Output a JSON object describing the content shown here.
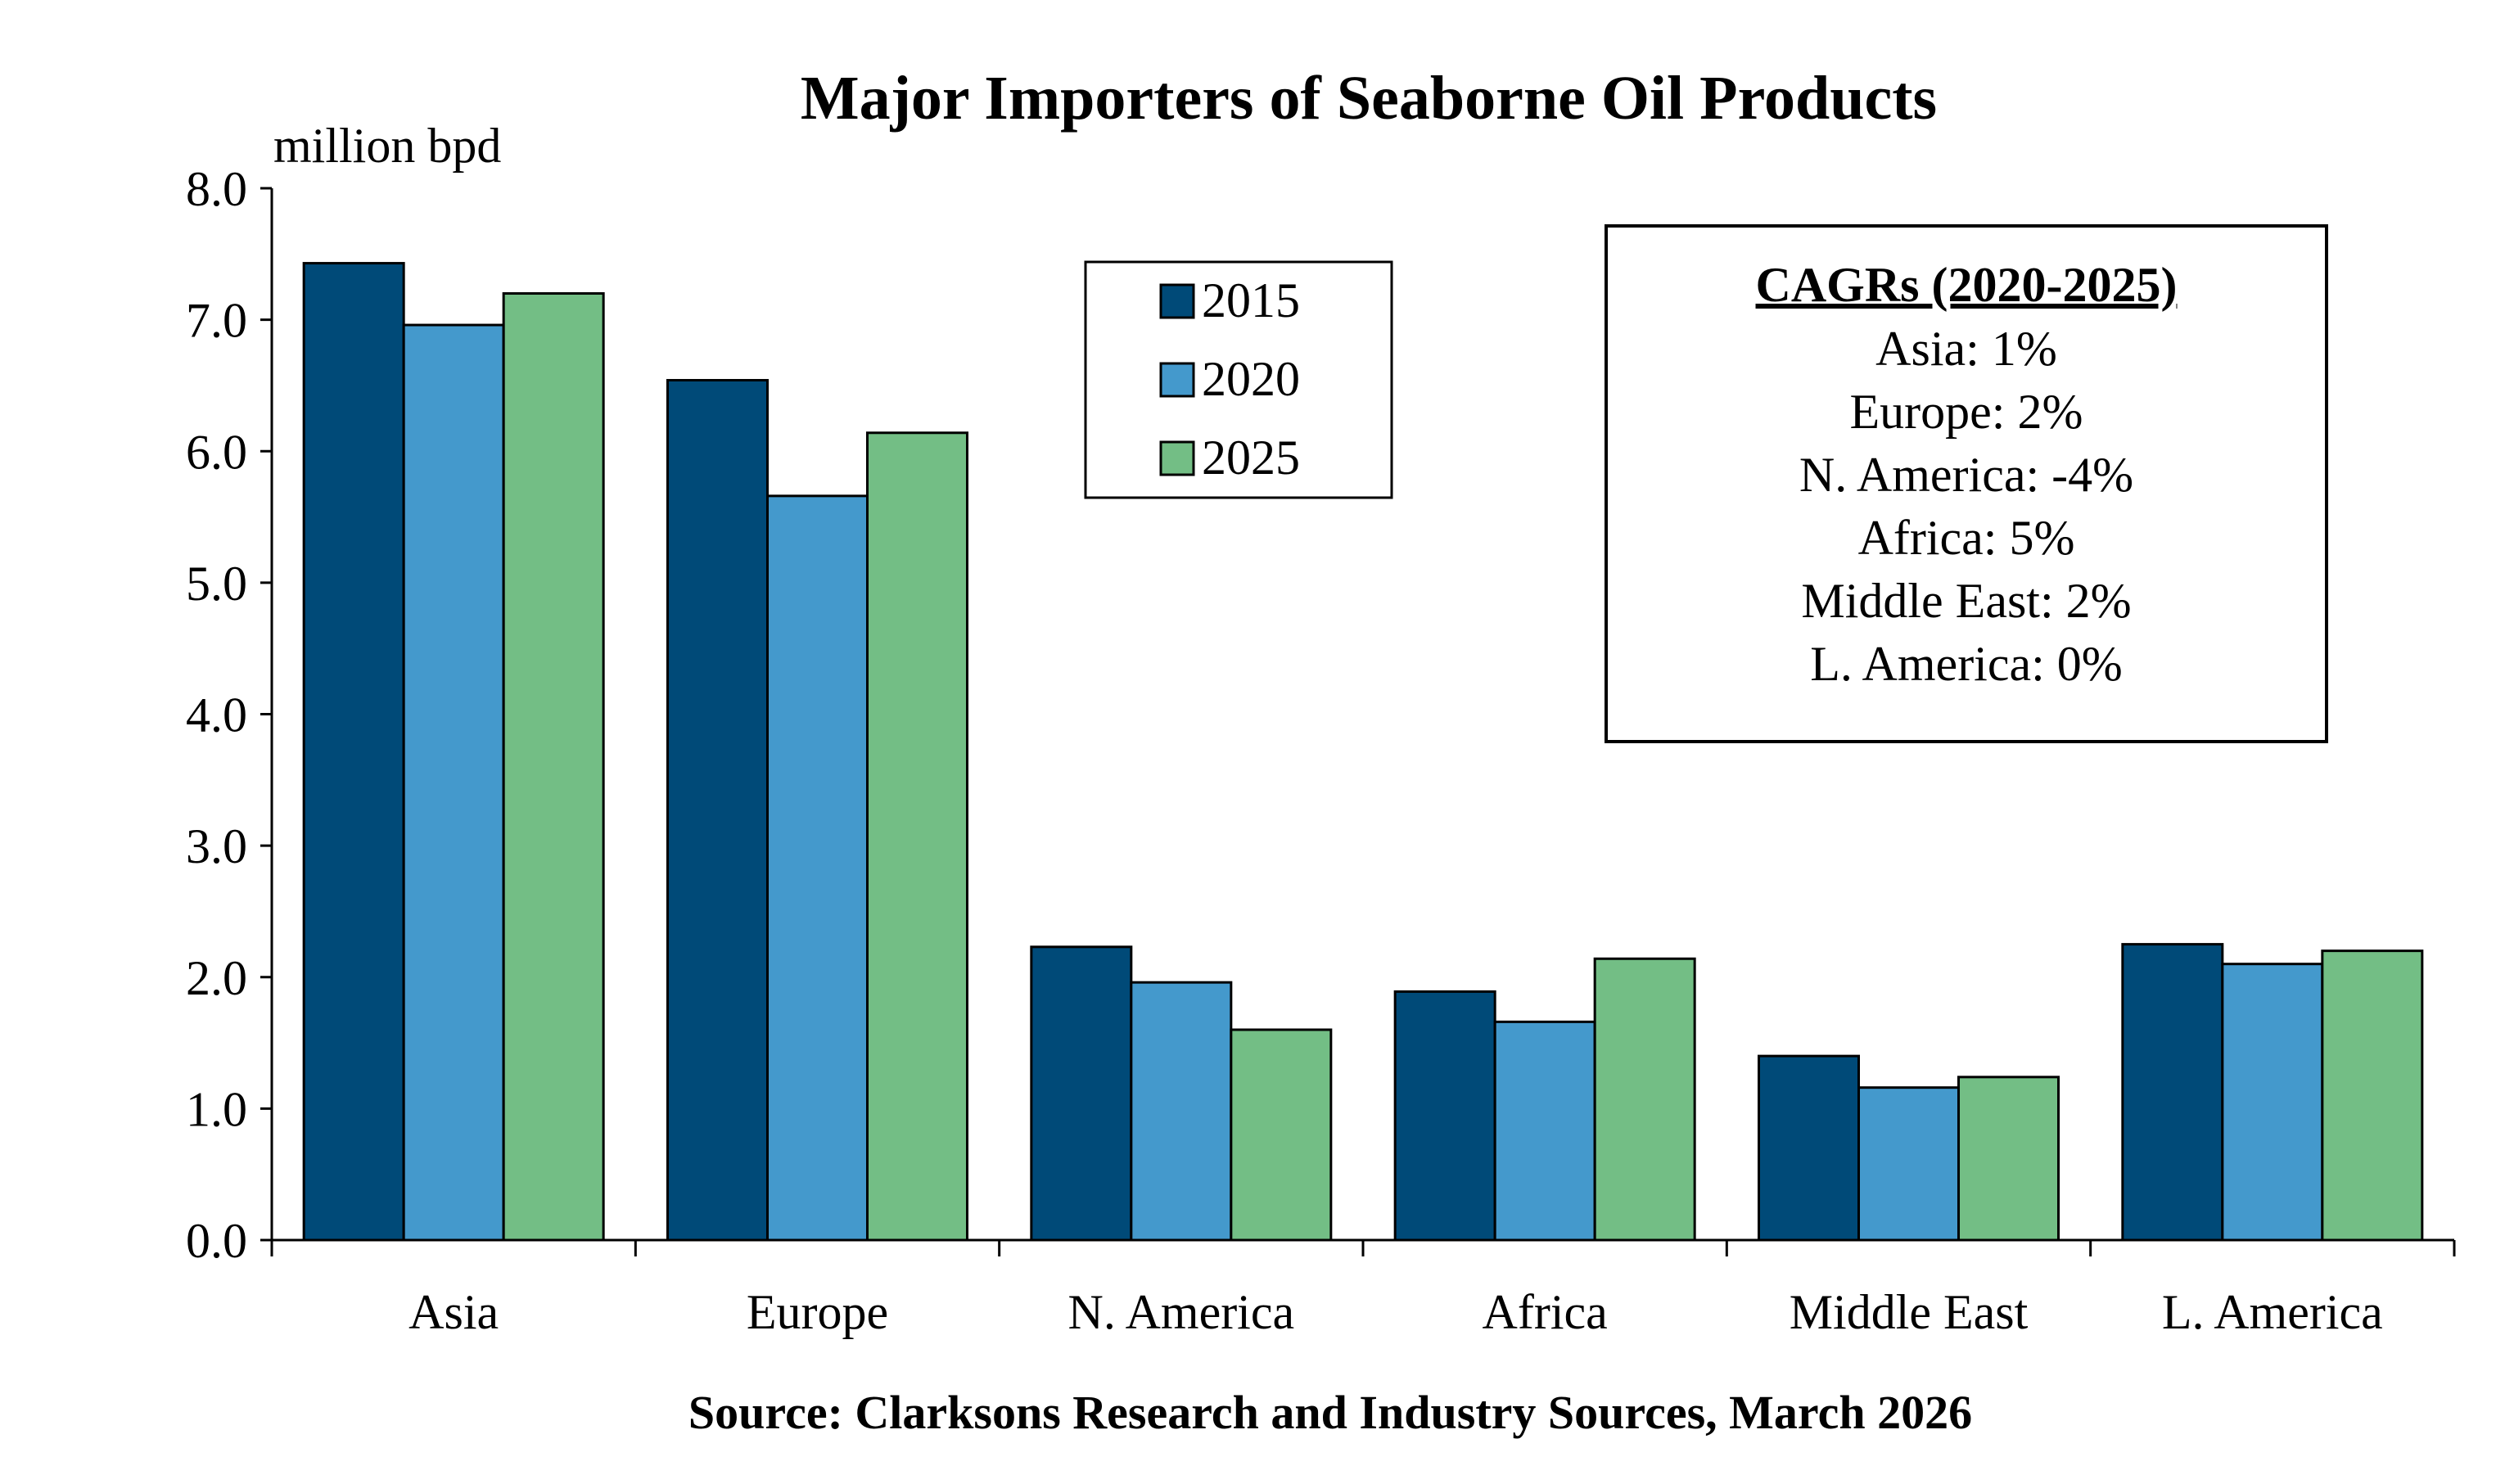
{
  "chart_data": {
    "type": "bar",
    "title": "Major Importers of Seaborne Oil Products",
    "ylabel": "million bpd",
    "xlabel": "",
    "ylim": [
      0,
      8
    ],
    "yticks": [
      "0.0",
      "1.0",
      "2.0",
      "3.0",
      "4.0",
      "5.0",
      "6.0",
      "7.0",
      "8.0"
    ],
    "categories": [
      "Asia",
      "Europe",
      "N. America",
      "Africa",
      "Middle East",
      "L. America"
    ],
    "series": [
      {
        "name": "2015",
        "color": "#004A78",
        "values": [
          7.43,
          6.54,
          2.23,
          1.89,
          1.4,
          2.25
        ]
      },
      {
        "name": "2020",
        "color": "#4499CC",
        "values": [
          6.96,
          5.66,
          1.96,
          1.66,
          1.16,
          2.1
        ]
      },
      {
        "name": "2025",
        "color": "#73BE85",
        "values": [
          7.2,
          6.14,
          1.6,
          2.14,
          1.24,
          2.2
        ]
      }
    ],
    "legend_position": "top-center",
    "annotation_box": {
      "heading": "CAGRs (2020-2025)",
      "lines": [
        "Asia: 1%",
        "Europe: 2%",
        "N. America: -4%",
        "Africa: 5%",
        "Middle East: 2%",
        "L. America: 0%"
      ]
    },
    "source": "Source: Clarksons Research and Industry Sources, March 2026",
    "grid": false
  }
}
